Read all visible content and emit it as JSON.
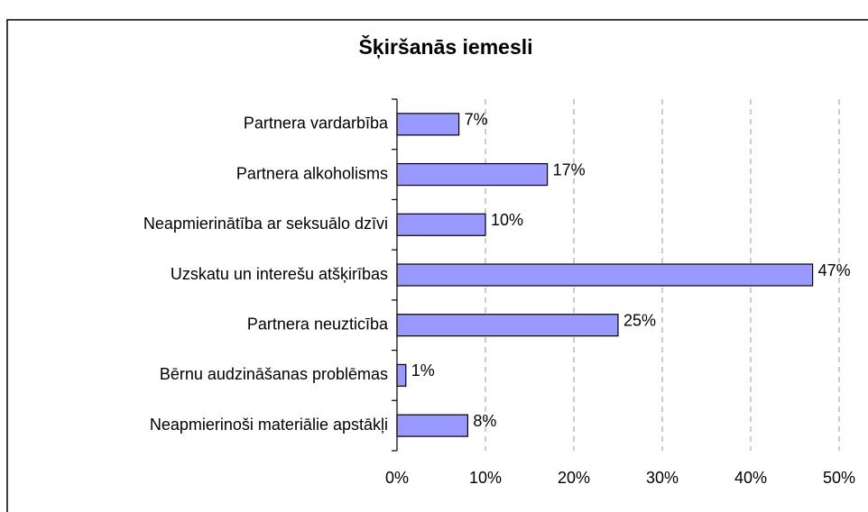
{
  "chart_data": {
    "type": "bar",
    "orientation": "horizontal",
    "title": "Šķiršanās iemesli",
    "categories": [
      "Partnera vardarbība",
      "Partnera alkoholisms",
      "Neapmierinātība ar seksuālo dzīvi",
      "Uzskatu un interešu atšķirības",
      "Partnera neuzticība",
      "Bērnu audzināšanas problēmas",
      "Neapmierinoši materiālie apstākļi"
    ],
    "values": [
      7,
      17,
      10,
      47,
      25,
      1,
      8
    ],
    "value_labels": [
      "7%",
      "17%",
      "10%",
      "47%",
      "25%",
      "1%",
      "8%"
    ],
    "color": "#9999ff",
    "xlim": [
      0,
      50
    ],
    "xticks": [
      {
        "value": 0,
        "label": "0%"
      },
      {
        "value": 10,
        "label": "10%"
      },
      {
        "value": 20,
        "label": "20%"
      },
      {
        "value": 30,
        "label": "30%"
      },
      {
        "value": 40,
        "label": "40%"
      },
      {
        "value": 50,
        "label": "50%"
      }
    ],
    "grid": true
  }
}
